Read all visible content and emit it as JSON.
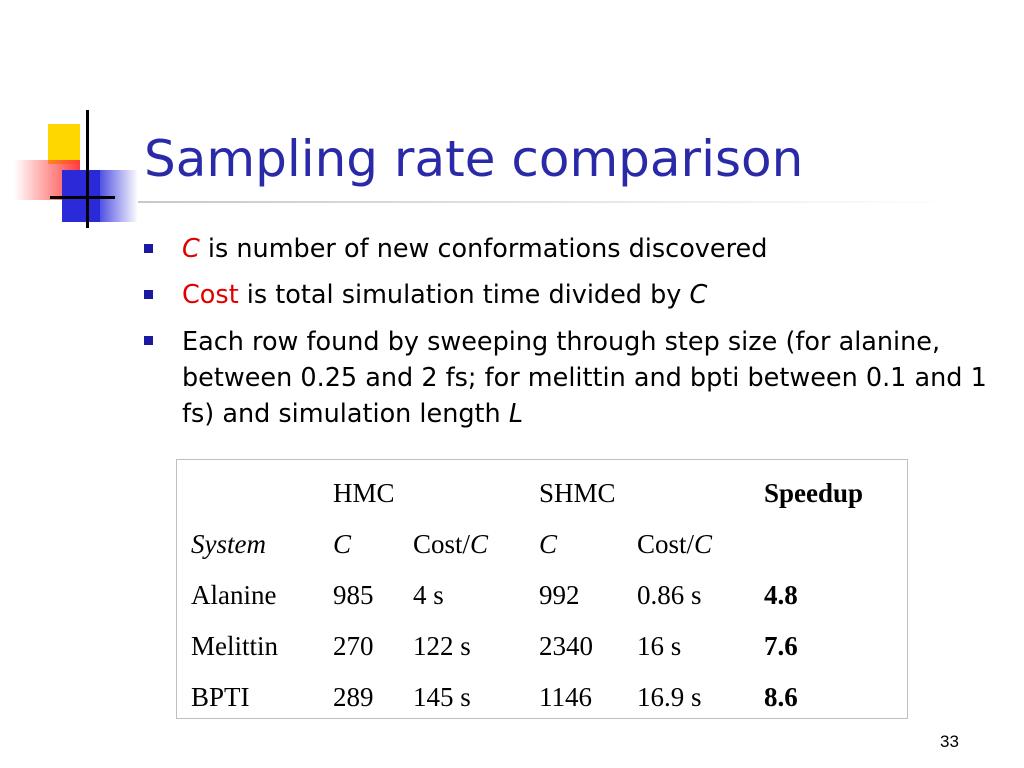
{
  "title": "Sampling rate comparison",
  "bullets": [
    {
      "term": "C",
      "text": " is number of new conformations discovered"
    },
    {
      "term": "Cost",
      "text": " is total simulation time divided by ",
      "tail": "C"
    },
    {
      "text": "Each row found by sweeping through step size (for alanine, between 0.25 and 2 fs; for melittin and bpti between 0.1 and 1 fs) and simulation length ",
      "tail": "L"
    }
  ],
  "table": {
    "groups": {
      "hmc": "HMC",
      "shmc": "SHMC",
      "speedup": "Speedup"
    },
    "subheaders": {
      "system": "System",
      "c_hmc": "C",
      "cost_prefix": "Cost/",
      "cost_var": "C",
      "c_shmc": "C"
    },
    "rows": [
      {
        "system": "Alanine",
        "hmc_c": "985",
        "hmc_cost": "4 s",
        "shmc_c": "992",
        "shmc_cost": "0.86 s",
        "speedup": "4.8"
      },
      {
        "system": "Melittin",
        "hmc_c": "270",
        "hmc_cost": "122 s",
        "shmc_c": "2340",
        "shmc_cost": "16 s",
        "speedup": "7.6"
      },
      {
        "system": "BPTI",
        "hmc_c": "289",
        "hmc_cost": "145 s",
        "shmc_c": "1146",
        "shmc_cost": "16.9 s",
        "speedup": "8.6"
      }
    ]
  },
  "page_number": "33"
}
